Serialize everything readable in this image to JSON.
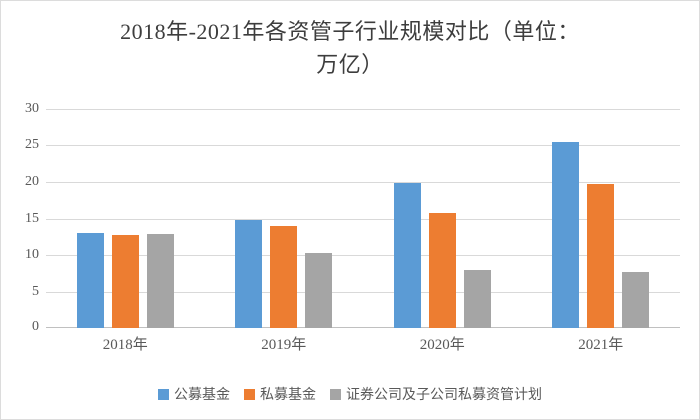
{
  "chart_data": {
    "type": "bar",
    "title": "2018年-2021年各资管子行业规模对比（单位：万亿）",
    "title_lines": [
      "2018年-2021年各资管子行业规模对比（单位：",
      "万亿）"
    ],
    "categories": [
      "2018年",
      "2019年",
      "2020年",
      "2021年"
    ],
    "series": [
      {
        "name": "公募基金",
        "color": "#5B9BD5",
        "values": [
          13.0,
          14.8,
          19.9,
          25.5
        ]
      },
      {
        "name": "私募基金",
        "color": "#ED7D31",
        "values": [
          12.8,
          14.0,
          15.8,
          19.8
        ]
      },
      {
        "name": "证券公司及子公司私募资管计划",
        "color": "#A5A5A5",
        "values": [
          12.9,
          10.3,
          8.0,
          7.7
        ]
      }
    ],
    "xlabel": "",
    "ylabel": "",
    "unit": "万亿",
    "ylim": [
      0,
      30
    ],
    "yticks": [
      0,
      5,
      10,
      15,
      20,
      25,
      30
    ],
    "grid": true,
    "legend_position": "bottom"
  }
}
